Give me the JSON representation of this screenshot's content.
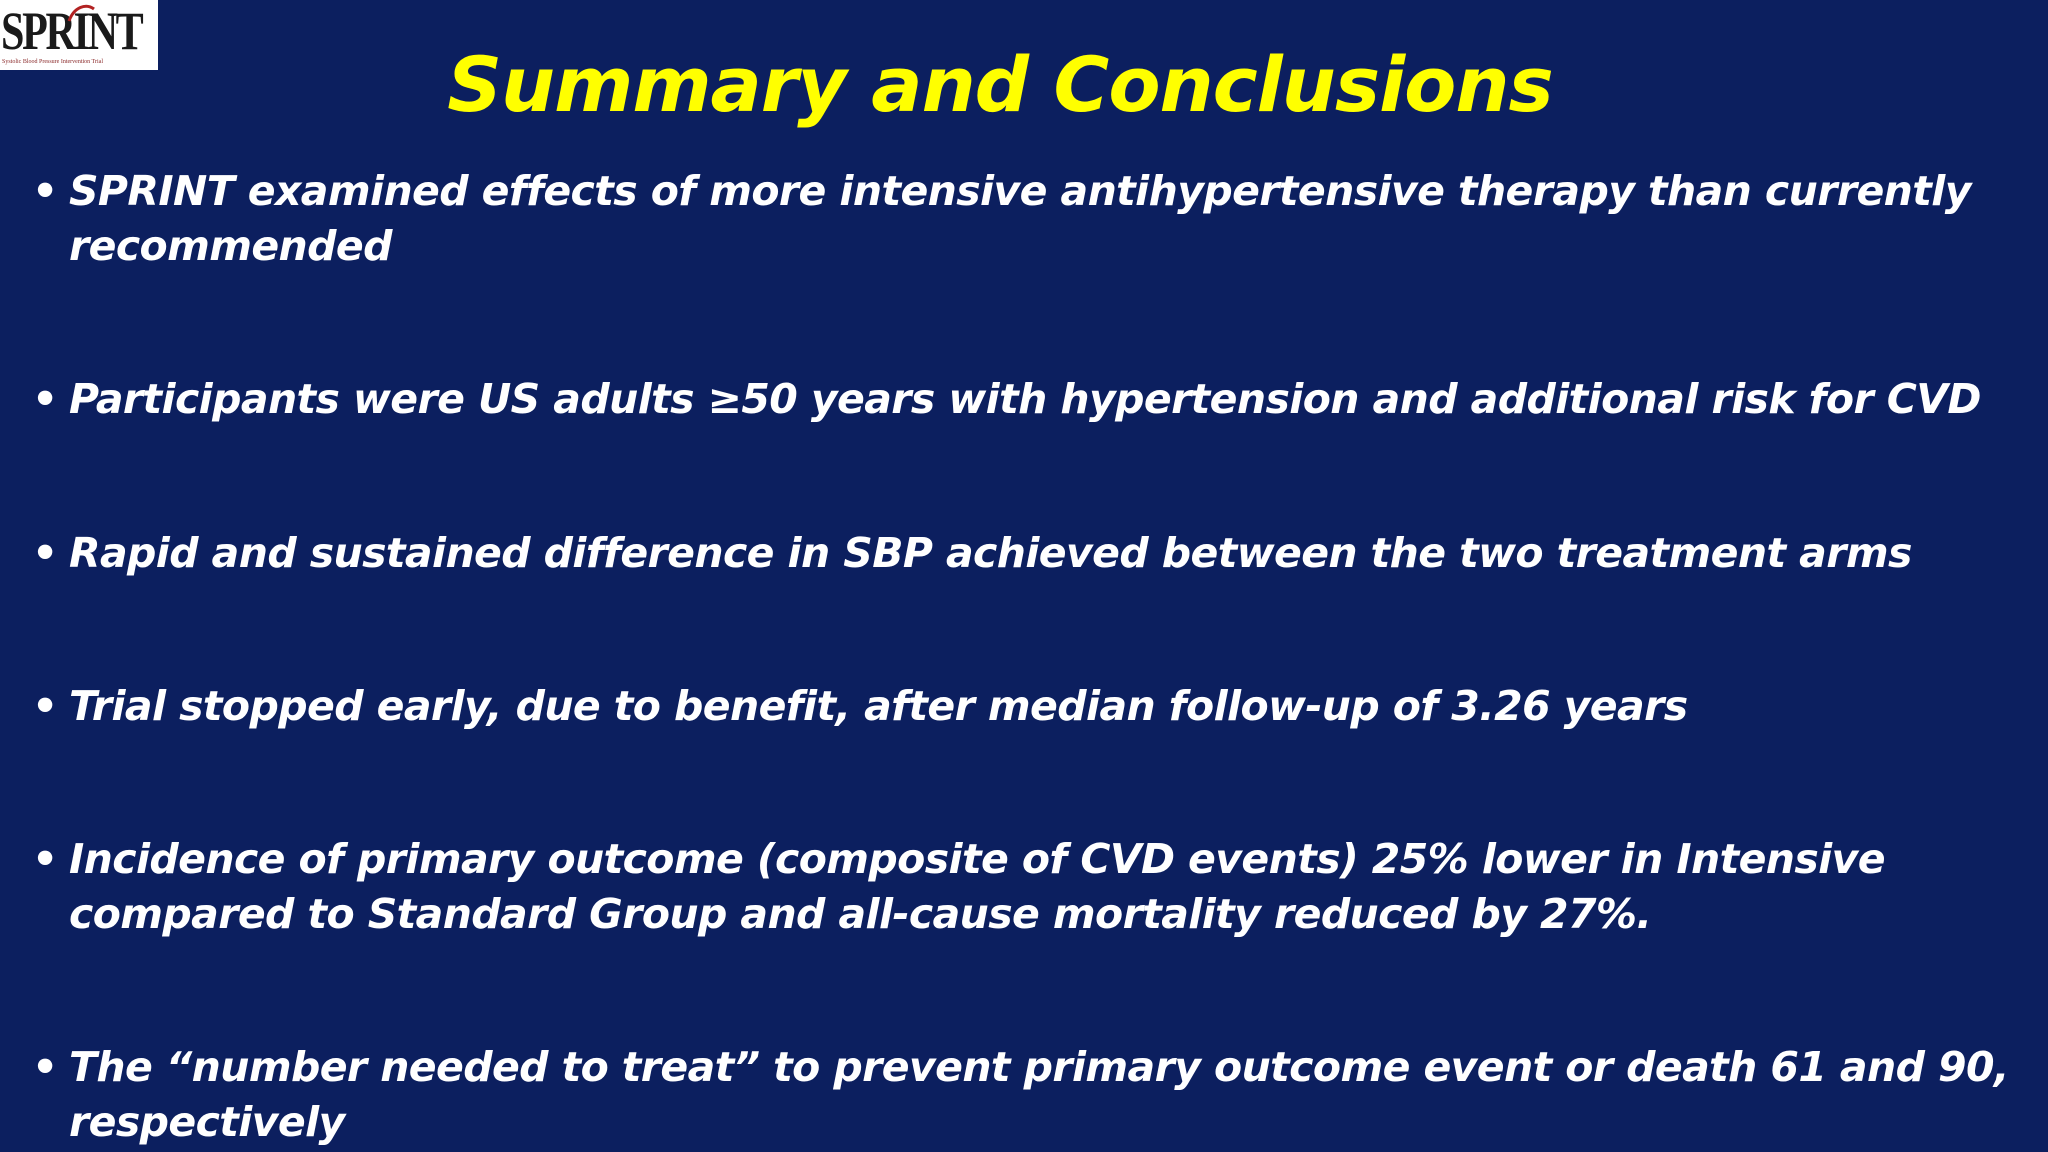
{
  "logo": {
    "wordmark": "SPRINT",
    "tagline": "Systolic Blood Pressure Intervention Trial"
  },
  "title": "Summary and Conclusions",
  "bullet_symbol": "•",
  "bullets": [
    "SPRINT examined effects of more intensive antihypertensive therapy than currently recommended",
    "Participants were US adults ≥50 years with hypertension and additional risk for CVD",
    "Rapid and sustained difference in SBP achieved between the two treatment arms",
    "Trial stopped early, due to benefit, after median follow-up of 3.26 years",
    "Incidence of primary outcome (composite of CVD events) 25% lower in Intensive compared to Standard Group and all-cause mortality reduced by 27%.",
    "The “number needed to treat” to prevent primary outcome event or death 61 and 90, respectively"
  ],
  "colors": {
    "background": "#0c1f5f",
    "title": "#ffff00",
    "text": "#ffffff",
    "logo_accent": "#b22222"
  }
}
